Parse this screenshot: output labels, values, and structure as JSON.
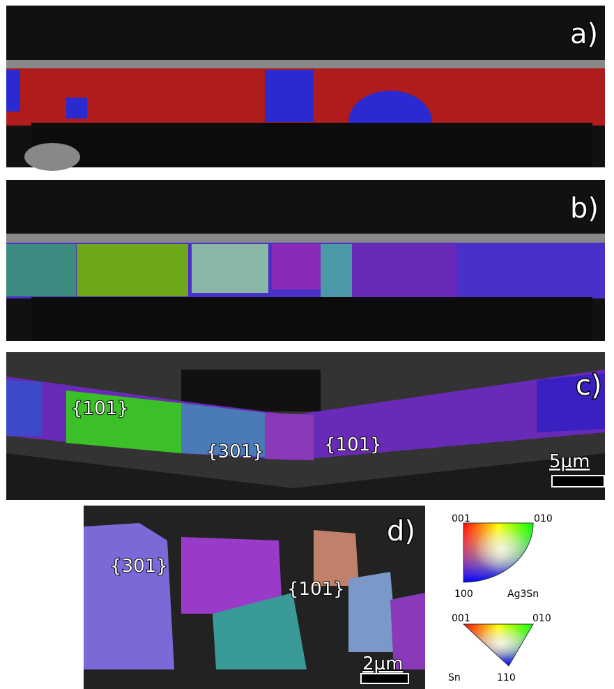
{
  "panels": [
    {
      "label": "a)"
    },
    {
      "label": "b)"
    },
    {
      "label": "c)",
      "annotations": [
        "{101}",
        "{301}",
        "{101}"
      ],
      "scale_bar": "5µm"
    },
    {
      "label": "d)",
      "annotations": [
        "{301}",
        "{101}"
      ],
      "scale_bar": "2µm"
    }
  ],
  "legends": [
    {
      "corners": [
        "001",
        "010",
        "100"
      ],
      "phase": "Ag3Sn"
    },
    {
      "corners": [
        "001",
        "010",
        "110"
      ],
      "phase": "Sn"
    }
  ]
}
